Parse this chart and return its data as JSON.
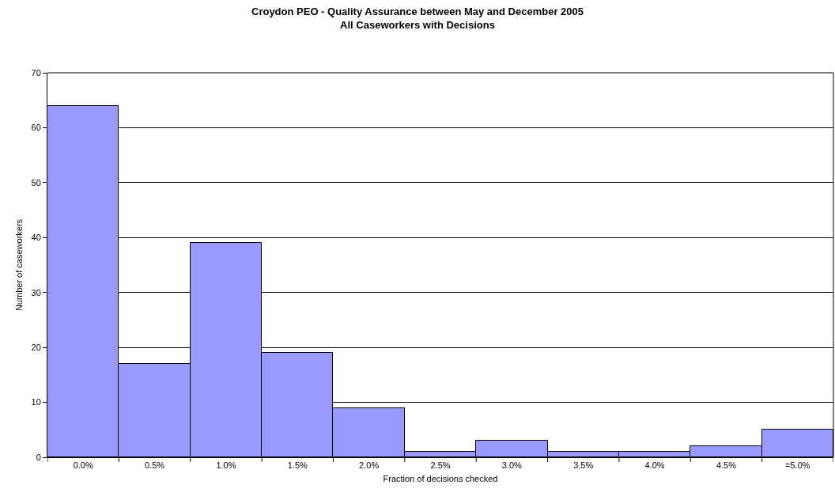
{
  "chart_data": {
    "type": "bar",
    "title": "Croydon PEO - Quality Assurance between May and December 2005\nAll Caseworkers with Decisions",
    "xlabel": "Fraction of decisions checked",
    "ylabel": "Number of caseworkers",
    "categories": [
      "0.0%",
      "0.5%",
      "1.0%",
      "1.5%",
      "2.0%",
      "2.5%",
      "3.0%",
      "3.5%",
      "4.0%",
      "4.5%",
      "=5.0%"
    ],
    "values": [
      64,
      17,
      39,
      19,
      9,
      1,
      3,
      1,
      1,
      2,
      5
    ],
    "color": "#9999ff",
    "ylim": [
      0,
      70
    ],
    "yticks": [
      0,
      10,
      20,
      30,
      40,
      50,
      60,
      70
    ],
    "grid": "y"
  }
}
